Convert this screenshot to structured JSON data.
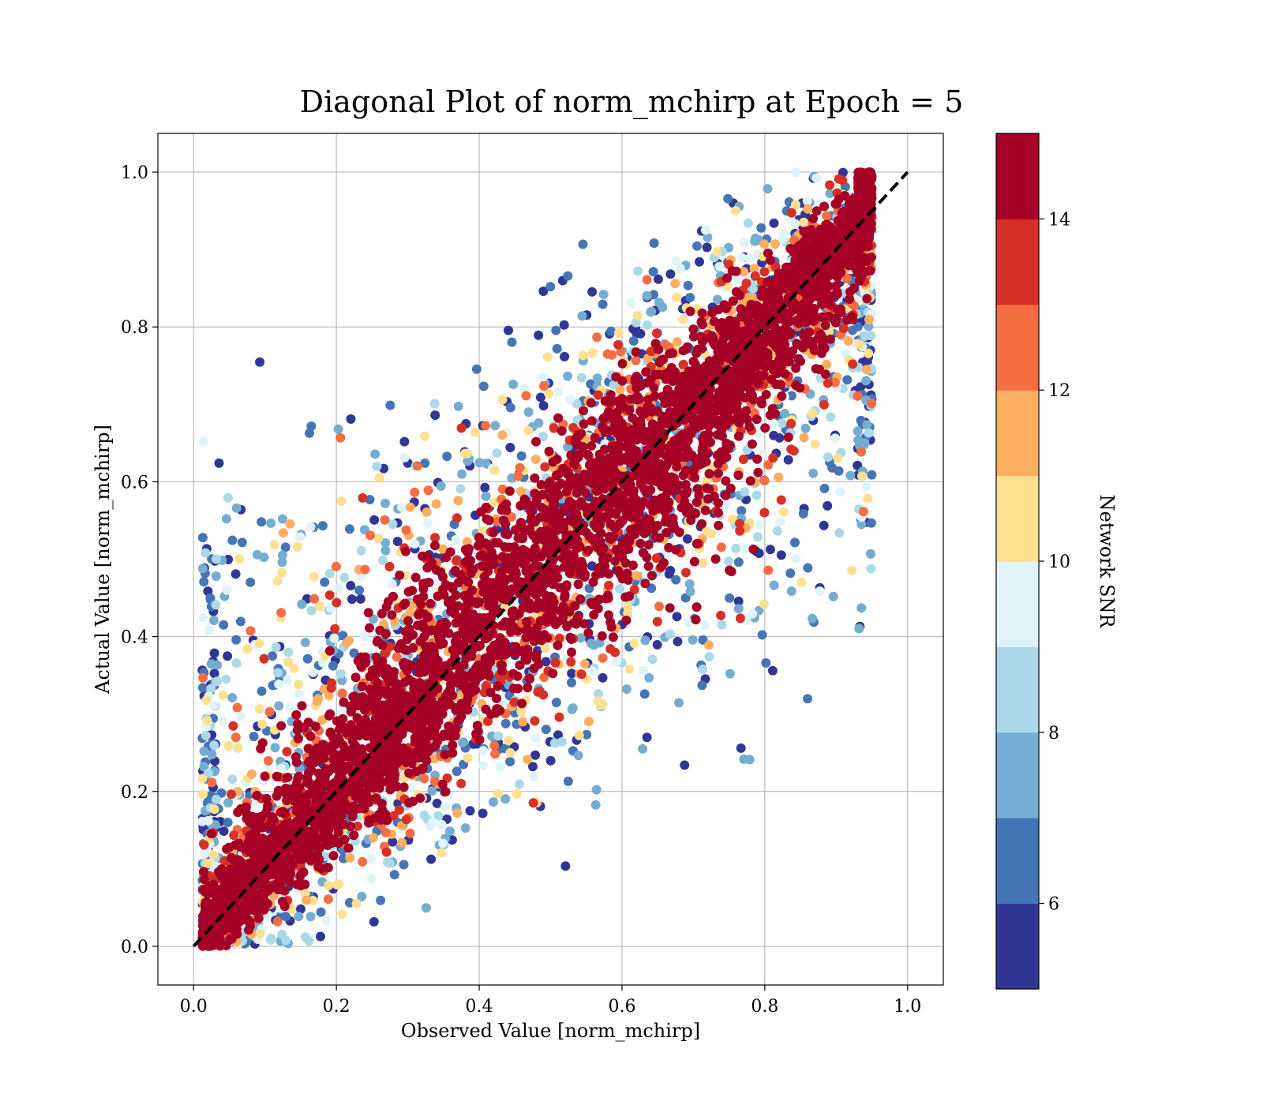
{
  "chart_data": {
    "type": "scatter",
    "title": "Diagonal Plot of norm_mchirp at Epoch = 5",
    "xlabel": "Observed Value [norm_mchirp]",
    "ylabel": "Actual Value [norm_mchirp]",
    "xlim": [
      -0.05,
      1.05
    ],
    "ylim": [
      -0.05,
      1.05
    ],
    "xticks": [
      "0.0",
      "0.2",
      "0.4",
      "0.6",
      "0.8",
      "1.0"
    ],
    "yticks": [
      "0.0",
      "0.2",
      "0.4",
      "0.6",
      "0.8",
      "1.0"
    ],
    "grid": true,
    "reference_line": {
      "x": [
        0,
        1
      ],
      "y": [
        0,
        1
      ],
      "style": "dashed",
      "color": "#000000"
    },
    "colorbar": {
      "label": "Network SNR",
      "range": [
        5,
        15
      ],
      "ticks": [
        "6",
        "8",
        "10",
        "12",
        "14"
      ],
      "colors": [
        "#313695",
        "#4575b4",
        "#74add1",
        "#abd9e9",
        "#e0f3f8",
        "#fee090",
        "#fdae61",
        "#f46d43",
        "#d73027",
        "#a50026"
      ]
    },
    "point_cloud": {
      "description": "Dense cloud of points around the diagonal; high-SNR points lie close to y=x, low-SNR points scatter widely.",
      "observed_range": [
        0.0,
        0.95
      ],
      "actual_range": [
        0.0,
        1.0
      ]
    }
  }
}
